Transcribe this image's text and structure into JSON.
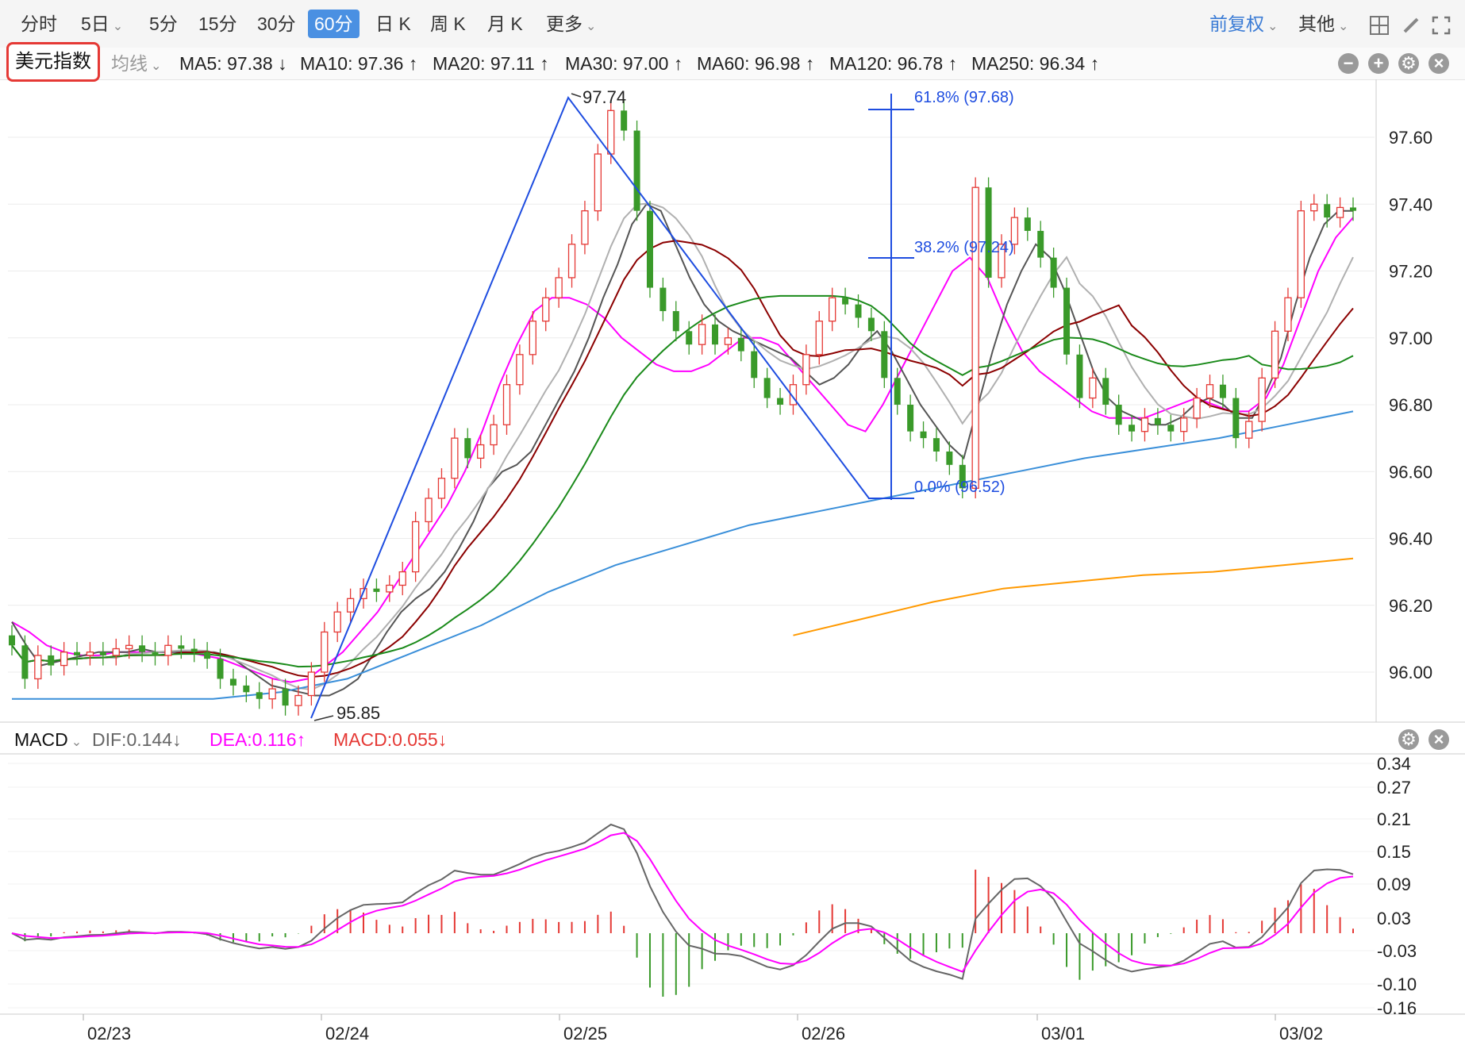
{
  "toolbar": {
    "periods": [
      "分时",
      "5日",
      "5分",
      "15分",
      "30分",
      "60分",
      "日 K",
      "周 K",
      "月 K",
      "更多"
    ],
    "active_period": "60分",
    "adjust": "前复权",
    "other": "其他"
  },
  "index_button": "美元指数",
  "ma_bar": {
    "label": "均线",
    "items": [
      {
        "text": "MA5: 97.38 ↓",
        "color": "#555555"
      },
      {
        "text": "MA10: 97.36 ↑",
        "color": "#ff00ff"
      },
      {
        "text": "MA20: 97.11 ↑",
        "color": "#aaaaaa"
      },
      {
        "text": "MA30: 97.00 ↑",
        "color": "#8b0000"
      },
      {
        "text": "MA60: 96.98 ↑",
        "color": "#008000"
      },
      {
        "text": "MA120: 96.78 ↑",
        "color": "#3a8fd9"
      },
      {
        "text": "MA250: 96.34 ↑",
        "color": "#ff9900"
      }
    ]
  },
  "macd_bar": {
    "label": "MACD",
    "dif": "DIF:0.144↓",
    "dea": "DEA:0.116↑",
    "macd": "MACD:0.055↓"
  },
  "annotations": {
    "high": "97.74",
    "low": "95.85",
    "fib_618": "61.8% (97.68)",
    "fib_382": "38.2% (97.24)",
    "fib_0": "0.0% (96.52)"
  },
  "chart_data": {
    "type": "candlestick",
    "y_ticks": [
      "97.60",
      "97.40",
      "97.20",
      "97.00",
      "96.80",
      "96.60",
      "96.40",
      "96.20",
      "96.00"
    ],
    "y_range": [
      95.85,
      97.74
    ],
    "macd_y_ticks": [
      "0.34",
      "0.27",
      "0.21",
      "0.15",
      "0.09",
      "0.03",
      "-0.03",
      "-0.10",
      "-0.16"
    ],
    "x_ticks": [
      "02/23",
      "02/24",
      "02/25",
      "02/26",
      "03/01",
      "03/02"
    ],
    "close_series": [
      96.08,
      95.98,
      96.05,
      96.02,
      96.06,
      96.05,
      96.06,
      96.05,
      96.07,
      96.08,
      96.06,
      96.05,
      96.08,
      96.07,
      96.06,
      96.04,
      95.98,
      95.96,
      95.94,
      95.92,
      95.95,
      95.9,
      95.93,
      96.0,
      96.12,
      96.18,
      96.22,
      96.25,
      96.24,
      96.26,
      96.3,
      96.45,
      96.52,
      96.58,
      96.7,
      96.64,
      96.68,
      96.74,
      96.86,
      96.95,
      97.05,
      97.12,
      97.18,
      97.28,
      97.38,
      97.55,
      97.68,
      97.62,
      97.38,
      97.15,
      97.08,
      97.02,
      96.98,
      97.04,
      96.98,
      97.0,
      96.96,
      96.88,
      96.82,
      96.8,
      96.86,
      96.95,
      97.05,
      97.12,
      97.1,
      97.06,
      97.02,
      96.88,
      96.8,
      96.72,
      96.7,
      96.66,
      96.62,
      96.55,
      97.45,
      97.18,
      97.28,
      97.36,
      97.32,
      97.24,
      97.15,
      96.95,
      96.82,
      96.88,
      96.8,
      96.74,
      96.72,
      96.76,
      96.74,
      96.72,
      96.76,
      96.82,
      96.86,
      96.82,
      96.7,
      96.75,
      96.88,
      97.02,
      97.12,
      97.38,
      97.4,
      97.36,
      97.39,
      97.38
    ],
    "ma5": [
      96.15,
      96.08,
      96.02,
      96.03,
      96.04,
      96.05,
      96.06,
      96.06,
      96.06,
      96.07,
      96.06,
      96.06,
      96.06,
      96.06,
      96.06,
      96.05,
      96.02,
      95.99,
      95.96,
      95.95,
      95.94,
      95.93,
      95.93,
      95.95,
      95.98,
      96.05,
      96.12,
      96.18,
      96.22,
      96.25,
      96.3,
      96.37,
      96.45,
      96.55,
      96.6,
      96.62,
      96.66,
      96.74,
      96.82,
      96.9,
      97.0,
      97.12,
      97.22,
      97.34,
      97.4,
      97.38,
      97.28,
      97.18,
      97.1,
      97.05,
      97.02,
      97.0,
      96.98,
      96.96,
      96.94,
      96.9,
      96.86,
      96.88,
      96.92,
      96.98,
      97.02,
      96.96,
      96.88,
      96.8,
      96.74,
      96.68,
      96.64,
      96.8,
      96.96,
      97.1,
      97.2,
      97.28,
      97.24,
      97.14,
      97.02,
      96.9,
      96.82,
      96.78,
      96.76,
      96.74,
      96.74,
      96.76,
      96.8,
      96.82,
      96.8,
      96.76,
      96.76,
      96.84,
      96.94,
      97.1,
      97.24,
      97.34,
      97.38,
      97.38
    ],
    "ma10": [
      96.15,
      96.12,
      96.08,
      96.06,
      96.05,
      96.05,
      96.06,
      96.06,
      96.06,
      96.06,
      96.06,
      96.05,
      96.04,
      96.02,
      96.0,
      95.98,
      95.97,
      95.98,
      96.02,
      96.06,
      96.12,
      96.18,
      96.26,
      96.34,
      96.42,
      96.5,
      96.6,
      96.72,
      96.86,
      96.98,
      97.08,
      97.12,
      97.12,
      97.1,
      97.06,
      97.0,
      96.96,
      96.92,
      96.9,
      96.9,
      96.92,
      96.96,
      97.0,
      97.0,
      96.98,
      96.92,
      96.86,
      96.8,
      96.74,
      96.72,
      96.8,
      96.9,
      97.0,
      97.1,
      97.2,
      97.24,
      97.18,
      97.06,
      96.96,
      96.9,
      96.86,
      96.82,
      96.78,
      96.76,
      96.76,
      96.76,
      96.78,
      96.8,
      96.82,
      96.8,
      96.78,
      96.78,
      96.82,
      96.92,
      97.06,
      97.2,
      97.3,
      97.36
    ]
  }
}
